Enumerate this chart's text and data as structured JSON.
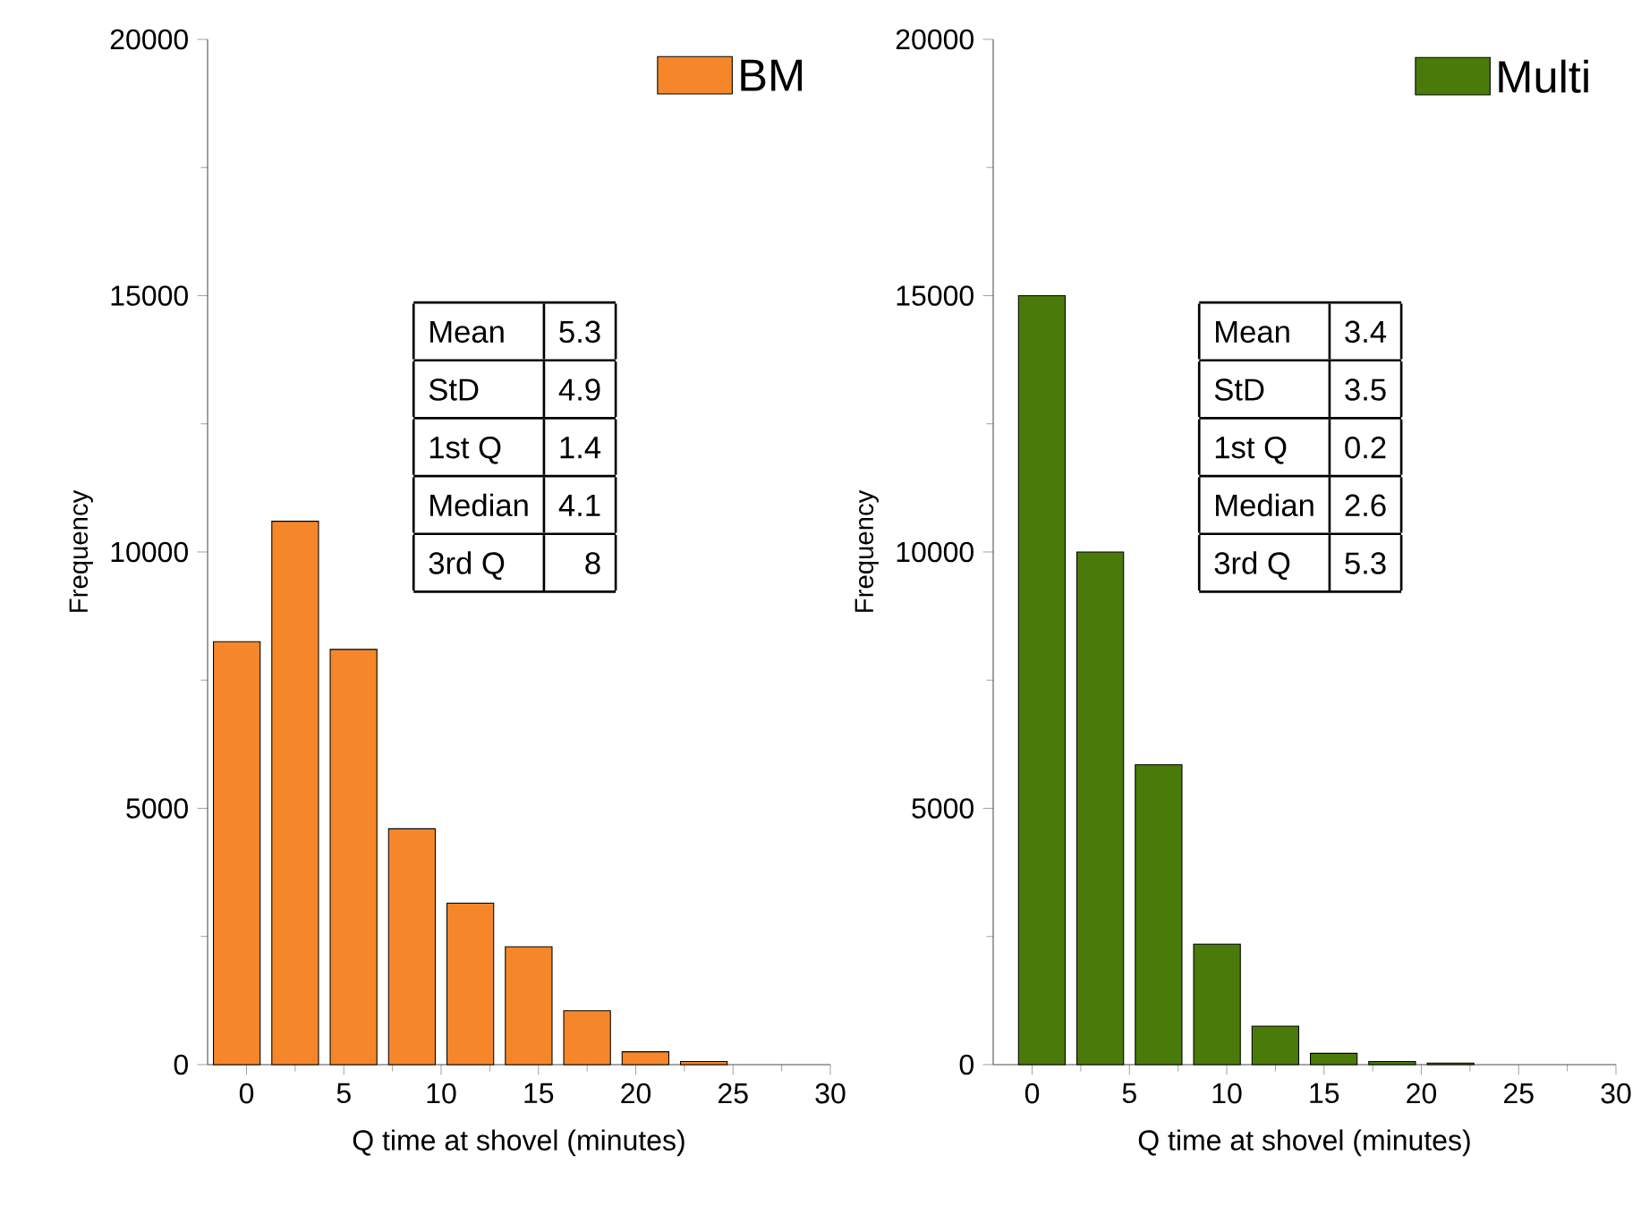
{
  "chart_data": [
    {
      "type": "histogram",
      "xlabel": "Q time at shovel (minutes)",
      "ylabel": "Frequency",
      "bins": [
        -2,
        1,
        4,
        7,
        10,
        13,
        16,
        19,
        22,
        25
      ],
      "series": [
        {
          "name": "BM",
          "color": "#f5872a",
          "values": [
            8250,
            10600,
            8100,
            4600,
            3150,
            2300,
            1050,
            250,
            60
          ]
        }
      ],
      "xlim": [
        -2,
        30
      ],
      "xticks": [
        0,
        5,
        10,
        15,
        20,
        25,
        30
      ],
      "ylim": [
        0,
        20000
      ],
      "yticks": [
        0,
        5000,
        10000,
        15000,
        20000
      ],
      "legend": "top right",
      "annotations": [
        "Mean",
        "5.3",
        "StD",
        "4.9",
        "1st Q",
        "1.4",
        "Median",
        "4.1",
        "3rd Q",
        "8"
      ]
    },
    {
      "type": "histogram",
      "xlabel": "Q time at shovel (minutes)",
      "ylabel": "Frequency",
      "bins": [
        -1,
        2,
        5,
        8,
        11,
        14,
        17,
        20,
        23
      ],
      "series": [
        {
          "name": "Multi",
          "color": "#4a7a0a",
          "values": [
            15000,
            10000,
            5850,
            2350,
            750,
            220,
            60,
            30
          ]
        }
      ],
      "xlim": [
        -2,
        30
      ],
      "xticks": [
        0,
        5,
        10,
        15,
        20,
        25,
        30
      ],
      "ylim": [
        0,
        20000
      ],
      "yticks": [
        0,
        5000,
        10000,
        15000,
        20000
      ],
      "legend": "top right",
      "annotations": [
        "Mean",
        "3.4",
        "StD",
        "3.5",
        "1st Q",
        "0.2",
        "Median",
        "2.6",
        "3rd Q",
        "5.3"
      ]
    }
  ]
}
